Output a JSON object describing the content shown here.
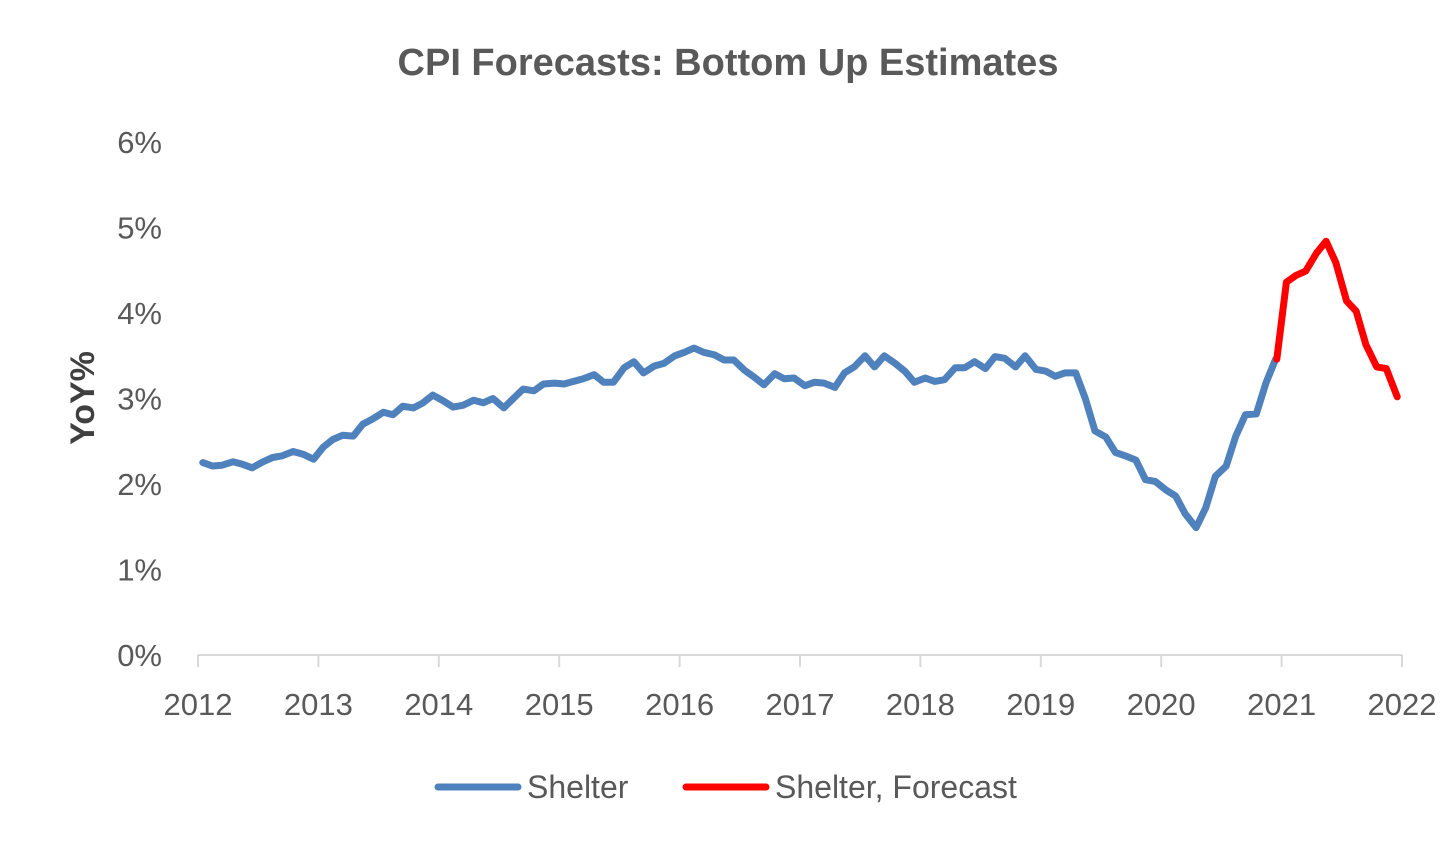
{
  "chart_data": {
    "type": "line",
    "title": "CPI Forecasts: Bottom Up Estimates",
    "xlabel": "",
    "ylabel": "YoY%",
    "xlim": [
      2012,
      2022
    ],
    "ylim": [
      0,
      6
    ],
    "x_ticks": [
      "2012",
      "2013",
      "2014",
      "2015",
      "2016",
      "2017",
      "2018",
      "2019",
      "2020",
      "2021",
      "2022"
    ],
    "y_ticks": [
      "0%",
      "1%",
      "2%",
      "3%",
      "4%",
      "5%",
      "6%"
    ],
    "legend_position": "bottom",
    "grid": false,
    "series": [
      {
        "name": "Shelter",
        "color": "#4F81BD",
        "points": [
          [
            2012.04,
            2.25
          ],
          [
            2012.12,
            2.21
          ],
          [
            2012.2,
            2.22
          ],
          [
            2012.29,
            2.26
          ],
          [
            2012.37,
            2.23
          ],
          [
            2012.45,
            2.19
          ],
          [
            2012.54,
            2.26
          ],
          [
            2012.62,
            2.31
          ],
          [
            2012.7,
            2.33
          ],
          [
            2012.79,
            2.38
          ],
          [
            2012.87,
            2.35
          ],
          [
            2012.96,
            2.29
          ],
          [
            2013.04,
            2.43
          ],
          [
            2013.12,
            2.52
          ],
          [
            2013.2,
            2.57
          ],
          [
            2013.29,
            2.56
          ],
          [
            2013.37,
            2.7
          ],
          [
            2013.45,
            2.76
          ],
          [
            2013.54,
            2.84
          ],
          [
            2013.62,
            2.81
          ],
          [
            2013.7,
            2.91
          ],
          [
            2013.79,
            2.89
          ],
          [
            2013.87,
            2.95
          ],
          [
            2013.95,
            3.04
          ],
          [
            2014.04,
            2.97
          ],
          [
            2014.12,
            2.9
          ],
          [
            2014.2,
            2.92
          ],
          [
            2014.29,
            2.98
          ],
          [
            2014.37,
            2.95
          ],
          [
            2014.45,
            3.0
          ],
          [
            2014.54,
            2.89
          ],
          [
            2014.62,
            3.0
          ],
          [
            2014.7,
            3.11
          ],
          [
            2014.79,
            3.09
          ],
          [
            2014.87,
            3.17
          ],
          [
            2014.96,
            3.18
          ],
          [
            2015.04,
            3.17
          ],
          [
            2015.12,
            3.2
          ],
          [
            2015.2,
            3.23
          ],
          [
            2015.29,
            3.28
          ],
          [
            2015.37,
            3.19
          ],
          [
            2015.45,
            3.19
          ],
          [
            2015.54,
            3.36
          ],
          [
            2015.62,
            3.43
          ],
          [
            2015.7,
            3.3
          ],
          [
            2015.79,
            3.38
          ],
          [
            2015.87,
            3.41
          ],
          [
            2015.96,
            3.5
          ],
          [
            2016.04,
            3.54
          ],
          [
            2016.12,
            3.59
          ],
          [
            2016.2,
            3.54
          ],
          [
            2016.29,
            3.51
          ],
          [
            2016.37,
            3.45
          ],
          [
            2016.45,
            3.45
          ],
          [
            2016.54,
            3.33
          ],
          [
            2016.62,
            3.25
          ],
          [
            2016.7,
            3.16
          ],
          [
            2016.79,
            3.29
          ],
          [
            2016.87,
            3.23
          ],
          [
            2016.95,
            3.24
          ],
          [
            2017.04,
            3.15
          ],
          [
            2017.12,
            3.19
          ],
          [
            2017.2,
            3.18
          ],
          [
            2017.29,
            3.13
          ],
          [
            2017.37,
            3.3
          ],
          [
            2017.45,
            3.37
          ],
          [
            2017.54,
            3.5
          ],
          [
            2017.62,
            3.37
          ],
          [
            2017.7,
            3.5
          ],
          [
            2017.79,
            3.41
          ],
          [
            2017.87,
            3.32
          ],
          [
            2017.95,
            3.19
          ],
          [
            2018.04,
            3.24
          ],
          [
            2018.12,
            3.2
          ],
          [
            2018.2,
            3.22
          ],
          [
            2018.29,
            3.36
          ],
          [
            2018.37,
            3.36
          ],
          [
            2018.45,
            3.43
          ],
          [
            2018.54,
            3.35
          ],
          [
            2018.62,
            3.49
          ],
          [
            2018.7,
            3.47
          ],
          [
            2018.79,
            3.37
          ],
          [
            2018.87,
            3.5
          ],
          [
            2018.96,
            3.34
          ],
          [
            2019.04,
            3.32
          ],
          [
            2019.12,
            3.26
          ],
          [
            2019.2,
            3.3
          ],
          [
            2019.29,
            3.3
          ],
          [
            2019.37,
            3.0
          ],
          [
            2019.45,
            2.62
          ],
          [
            2019.54,
            2.55
          ],
          [
            2019.62,
            2.37
          ],
          [
            2019.7,
            2.33
          ],
          [
            2019.79,
            2.28
          ],
          [
            2019.87,
            2.05
          ],
          [
            2019.95,
            2.03
          ],
          [
            2020.04,
            1.93
          ],
          [
            2020.12,
            1.86
          ],
          [
            2020.2,
            1.65
          ],
          [
            2020.29,
            1.49
          ],
          [
            2020.37,
            1.72
          ],
          [
            2020.45,
            2.09
          ],
          [
            2020.54,
            2.21
          ],
          [
            2020.62,
            2.56
          ],
          [
            2020.7,
            2.81
          ],
          [
            2020.79,
            2.82
          ],
          [
            2020.87,
            3.18
          ],
          [
            2020.95,
            3.46
          ]
        ]
      },
      {
        "name": "Shelter, Forecast",
        "color": "#FF0000",
        "points": [
          [
            2020.96,
            3.46
          ],
          [
            2021.04,
            4.36
          ],
          [
            2021.12,
            4.44
          ],
          [
            2021.2,
            4.49
          ],
          [
            2021.29,
            4.7
          ],
          [
            2021.37,
            4.84
          ],
          [
            2021.45,
            4.59
          ],
          [
            2021.54,
            4.14
          ],
          [
            2021.62,
            4.02
          ],
          [
            2021.7,
            3.63
          ],
          [
            2021.79,
            3.37
          ],
          [
            2021.87,
            3.35
          ],
          [
            2021.96,
            3.02
          ]
        ]
      }
    ]
  }
}
